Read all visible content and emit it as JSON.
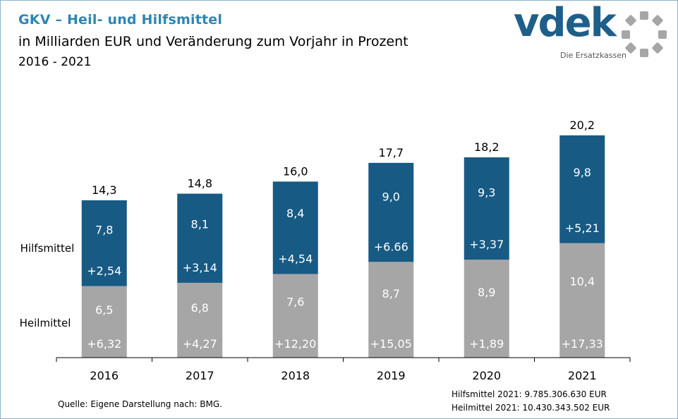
{
  "header": {
    "title": "GKV – Heil- und Hilfsmittel",
    "subtitle": "in Milliarden EUR und Veränderung zum Vorjahr in Prozent",
    "period": "2016 - 2021"
  },
  "logo": {
    "text": "vdek",
    "tagline": "Die Ersatzkassen"
  },
  "chart_data": {
    "type": "bar",
    "stacked": true,
    "categories": [
      "2016",
      "2017",
      "2018",
      "2019",
      "2020",
      "2021"
    ],
    "totals": [
      "14,3",
      "14,8",
      "16,0",
      "17,7",
      "18,2",
      "20,2"
    ],
    "series": [
      {
        "name": "Heilmittel",
        "color": "#a6a6a6",
        "values": [
          6.5,
          6.8,
          7.6,
          8.7,
          8.9,
          10.4
        ],
        "value_labels": [
          "6,5",
          "6,8",
          "7,6",
          "8,7",
          "8,9",
          "10,4"
        ],
        "change_labels": [
          "+6,32",
          "+4,27",
          "+12,20",
          "+15,05",
          "+1,89",
          "+17,33"
        ]
      },
      {
        "name": "Hilfsmittel",
        "color": "#175a84",
        "values": [
          7.8,
          8.1,
          8.4,
          9.0,
          9.3,
          9.8
        ],
        "value_labels": [
          "7,8",
          "8,1",
          "8,4",
          "9,0",
          "9,3",
          "9,8"
        ],
        "change_labels": [
          "+2,54",
          "+3,14",
          "+4,54",
          "+6.66",
          "+3,37",
          "+5,21"
        ]
      }
    ]
  },
  "footer": {
    "source": "Quelle: Eigene Darstellung nach: BMG.",
    "note_hilfsmittel": "Hilfsmittel 2021:  9.785.306.630  EUR",
    "note_heilmittel": "Heilmittel 2021: 10.430.343.502  EUR"
  }
}
